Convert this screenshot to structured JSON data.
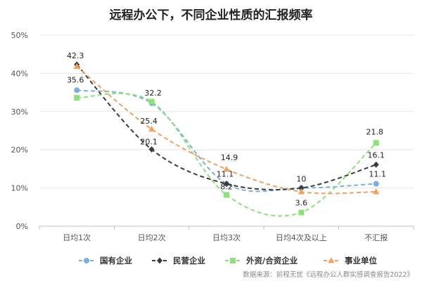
{
  "chart_data": {
    "type": "line",
    "title": "远程办公下，不同企业性质的汇报频率",
    "categories": [
      "日均1次",
      "日均2次",
      "日均3次",
      "日均4次及以上",
      "不汇报"
    ],
    "y_ticks": [
      "0%",
      "10%",
      "20%",
      "30%",
      "40%",
      "50%"
    ],
    "ylim": [
      0,
      50
    ],
    "grid": true,
    "legend_position": "bottom",
    "series": [
      {
        "name": "国有企业",
        "color": "#7aaedb",
        "marker": "circle",
        "values": [
          35.6,
          32.2,
          11.1,
          10.0,
          11.1
        ],
        "labels": [
          "35.6",
          "32.2",
          "11.1",
          "",
          "11.1"
        ]
      },
      {
        "name": "民营企业",
        "color": "#3b3b3b",
        "marker": "diamond",
        "values": [
          42.3,
          20.1,
          11.1,
          10.0,
          16.1
        ],
        "labels": [
          "42.3",
          "20.1",
          "",
          "10",
          "16.1"
        ]
      },
      {
        "name": "外资/合资企业",
        "color": "#8ee07a",
        "marker": "square",
        "values": [
          33.6,
          32.6,
          8.2,
          3.6,
          21.8
        ],
        "labels": [
          "",
          "",
          "8.2",
          "3.6",
          "21.8"
        ]
      },
      {
        "name": "事业单位",
        "color": "#f0a25e",
        "marker": "triangle",
        "values": [
          41.8,
          25.4,
          14.9,
          9.0,
          9.0
        ],
        "labels": [
          "",
          "25.4",
          "14.9",
          "",
          ""
        ]
      }
    ],
    "source": "数据来源：前程无忧《远程办公人群实感调查报告2022》"
  }
}
